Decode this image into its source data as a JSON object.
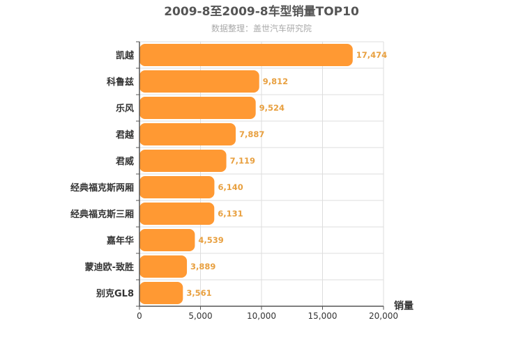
{
  "chart_data": {
    "type": "bar",
    "orientation": "horizontal",
    "title": "2009-8至2009-8车型销量TOP10",
    "subtitle": "数据整理：盖世汽车研究院",
    "xlabel": "销量",
    "ylabel": "",
    "xlim": [
      0,
      20000
    ],
    "x_ticks": [
      0,
      5000,
      10000,
      15000,
      20000
    ],
    "x_tick_labels": [
      "0",
      "5,000",
      "10,000",
      "15,000",
      "20,000"
    ],
    "grid": true,
    "categories": [
      "凯越",
      "科鲁兹",
      "乐风",
      "君越",
      "君威",
      "经典福克斯两厢",
      "经典福克斯三厢",
      "嘉年华",
      "蒙迪欧-致胜",
      "别克GL8"
    ],
    "values": [
      17474,
      9812,
      9524,
      7887,
      7119,
      6140,
      6131,
      4539,
      3889,
      3561
    ],
    "value_labels": [
      "17,474",
      "9,812",
      "9,524",
      "7,887",
      "7,119",
      "6,140",
      "6,131",
      "4,539",
      "3,889",
      "3,561"
    ],
    "bar_color": "#ff9933",
    "value_label_color": "#e8a040"
  }
}
